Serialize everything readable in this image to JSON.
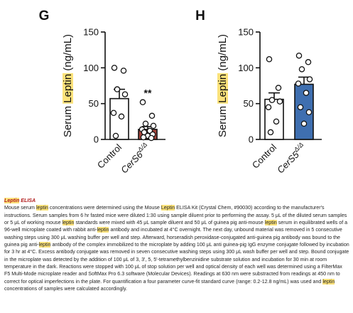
{
  "figure": {
    "panels": [
      {
        "letter": "G",
        "ylabel_pre": "Serum ",
        "ylabel_hl": "Leptin",
        "ylabel_post": " (ng/mL)",
        "significance": "**",
        "colors": {
          "bar2": "#a8453c",
          "bar1": "#ffffff"
        }
      },
      {
        "letter": "H",
        "ylabel_pre": "Serum ",
        "ylabel_hl": "Leptin",
        "ylabel_post": " (ng/mL)",
        "significance": "",
        "colors": {
          "bar2": "#3f6fb0",
          "bar1": "#ffffff"
        }
      }
    ],
    "highlight_color": "#fbe27b"
  },
  "chart_data": [
    {
      "type": "bar",
      "ylim": [
        0,
        150
      ],
      "yticks": [
        "0",
        "50",
        "100",
        "150"
      ],
      "xlabel": "",
      "ylabel": "Serum Leptin (ng/mL)",
      "categories": [
        {
          "base": "Control",
          "sup": ""
        },
        {
          "base": "CerS6",
          "sup": "Δ/Δ"
        }
      ],
      "means": [
        57,
        14
      ],
      "sem": [
        13,
        4
      ],
      "points": [
        [
          100,
          96,
          70,
          63,
          37,
          32,
          5
        ],
        [
          52,
          33,
          22,
          19,
          14,
          12,
          10,
          7,
          5,
          3,
          2
        ]
      ]
    },
    {
      "type": "bar",
      "ylim": [
        0,
        150
      ],
      "yticks": [
        "0",
        "50",
        "100",
        "150"
      ],
      "xlabel": "",
      "ylabel": "Serum Leptin (ng/mL)",
      "categories": [
        {
          "base": "Control",
          "sup": ""
        },
        {
          "base": "CerS5",
          "sup": "Δ/Δ"
        }
      ],
      "means": [
        56,
        77
      ],
      "sem": [
        9,
        10
      ],
      "points": [
        [
          112,
          72,
          55,
          53,
          45,
          25,
          10
        ],
        [
          117,
          108,
          98,
          84,
          78,
          65,
          45,
          38,
          22
        ]
      ]
    }
  ],
  "methods": {
    "heading_hl": "Leptin",
    "heading_rest": " ELISA",
    "segments": [
      {
        "t": "Mouse serum "
      },
      {
        "t": "leptin",
        "hl": true
      },
      {
        "t": " concentrations were determined using the Mouse "
      },
      {
        "t": "Leptin",
        "hl": true
      },
      {
        "t": " ELISA Kit (Crystal Chem, #90030) according to the manufacturer's instructions. Serum samples from 6 hr fasted mice were diluted 1:30 using sample diluent prior to performing the assay. 5 μL of the diluted serum samples or 5 μL of working mouse "
      },
      {
        "t": "leptin",
        "hl": true
      },
      {
        "t": " standards were mixed with 45 μL sample diluent and 50 μL of guinea pig anti-mouse "
      },
      {
        "t": "leptin",
        "hl": true
      },
      {
        "t": " serum in equilibrated wells of a 96-well microplate coated with rabbit anti-"
      },
      {
        "t": "leptin",
        "hl": true
      },
      {
        "t": " antibody and incubated at 4°C overnight. The next day, unbound material was removed in 5 consecutive washing steps using 300 μL washing buffer per well and step. Afterward, horseradish peroxidase-conjugated anti-guinea pig antibody was bound to the guinea pig anti-"
      },
      {
        "t": "leptin",
        "hl": true
      },
      {
        "t": " antibody of the complex immobilized to the microplate by adding 100 μL anti guinea-pig IgG enzyme conjugate followed by incubation for 3 hr at 4°C. Excess antibody conjugate was removed in seven consecutive washing steps using 300 μL wash buffer per well and step. Bound conjugate in the microplate was detected by the addition of 100 μL of 3, 3', 5, 5'-tetramethylbenzinidine substrate solution and incubation for 30 min at room temperature in the dark. Reactions were stopped with 100 μL of stop solution per well and optical density of each well was determined using a FilterMax F5 Multi-Mode microplate reader and SoftMax Pro 6.3 software (Molecular Devices). Readings at 630 nm were substracted from readings at 450 nm to correct for optical imperfections in the plate. For quantification a four parameter curve-fit standard curve (range: 0.2-12.8 ng/mL) was used and "
      },
      {
        "t": "leptin",
        "hl": true
      },
      {
        "t": " concentrations of samples were calculated accordingly."
      }
    ]
  }
}
